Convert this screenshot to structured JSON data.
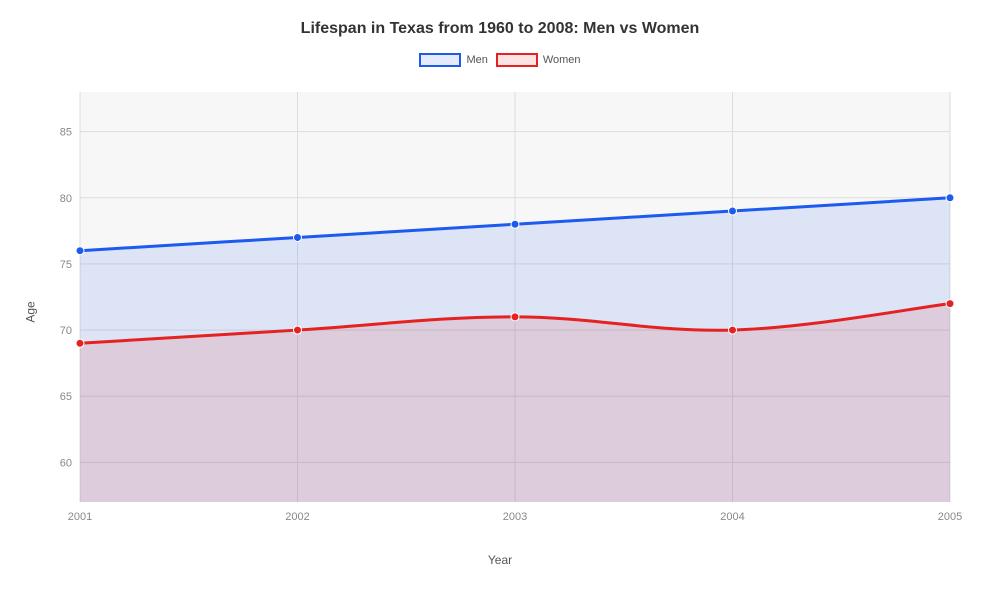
{
  "chart": {
    "type": "area-line",
    "title": "Lifespan in Texas from 1960 to 2008: Men vs Women",
    "x_label": "Year",
    "y_label": "Age",
    "background_color": "#ffffff",
    "plot_background_color": "#f7f7f7",
    "grid_color": "#dddddd",
    "tick_color": "#888888",
    "title_fontsize": 16,
    "label_fontsize": 12,
    "tick_fontsize": 11,
    "x_categories": [
      "2001",
      "2002",
      "2003",
      "2004",
      "2005"
    ],
    "y_ticks": [
      60,
      65,
      70,
      75,
      80,
      85
    ],
    "ylim": [
      57,
      88
    ],
    "series": [
      {
        "name": "Men",
        "values": [
          76,
          77,
          78,
          79,
          80
        ],
        "line_color": "#1c5af0",
        "fill_color": "rgba(28,90,240,0.12)",
        "marker_color": "#1c5af0",
        "line_width": 3,
        "marker_radius": 4
      },
      {
        "name": "Women",
        "values": [
          69,
          70,
          71,
          70,
          72
        ],
        "line_color": "#e42222",
        "fill_color": "rgba(228,34,34,0.12)",
        "marker_color": "#e42222",
        "line_width": 3,
        "marker_radius": 4
      }
    ],
    "legend": {
      "position": "top-center",
      "swatch_width": 42,
      "swatch_height": 14
    }
  }
}
